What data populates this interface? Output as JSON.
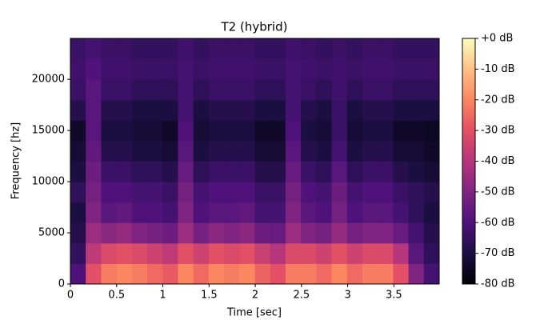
{
  "chart_data": {
    "type": "spectrogram",
    "title": "T2 (hybrid)",
    "x_label": "Time [sec]",
    "y_label": "Frequency [hz]",
    "xlim": [
      0,
      3.99
    ],
    "ylim": [
      0,
      24000
    ],
    "xticks": [
      0,
      0.5,
      1,
      1.5,
      2,
      2.5,
      3,
      3.5
    ],
    "yticks": [
      0,
      5000,
      10000,
      15000,
      20000
    ],
    "colormap": "magma",
    "clim": [
      -80,
      0
    ],
    "cticks": [
      {
        "value": 0,
        "label": "+0 dB"
      },
      {
        "value": -10,
        "label": "-10 dB"
      },
      {
        "value": -20,
        "label": "-20 dB"
      },
      {
        "value": -30,
        "label": "-30 dB"
      },
      {
        "value": -40,
        "label": "-40 dB"
      },
      {
        "value": -50,
        "label": "-50 dB"
      },
      {
        "value": -60,
        "label": "-60 dB"
      },
      {
        "value": -70,
        "label": "-70 dB"
      },
      {
        "value": -80,
        "label": "-80 dB"
      }
    ],
    "z": [
      [
        -60,
        -30,
        -22,
        -20,
        -22,
        -25,
        -28,
        -20,
        -25,
        -20,
        -22,
        -20,
        -26,
        -30,
        -22,
        -22,
        -25,
        -20,
        -25,
        -22,
        -22,
        -30,
        -50,
        -62
      ],
      [
        -65,
        -38,
        -32,
        -30,
        -32,
        -35,
        -38,
        -30,
        -35,
        -30,
        -32,
        -30,
        -36,
        -40,
        -32,
        -32,
        -35,
        -30,
        -35,
        -32,
        -32,
        -40,
        -58,
        -66
      ],
      [
        -68,
        -45,
        -48,
        -46,
        -50,
        -52,
        -54,
        -45,
        -52,
        -48,
        -50,
        -48,
        -54,
        -55,
        -45,
        -50,
        -52,
        -46,
        -52,
        -50,
        -50,
        -55,
        -62,
        -68
      ],
      [
        -70,
        -50,
        -58,
        -56,
        -60,
        -60,
        -62,
        -50,
        -60,
        -58,
        -58,
        -56,
        -62,
        -62,
        -50,
        -58,
        -60,
        -52,
        -60,
        -58,
        -58,
        -62,
        -66,
        -70
      ],
      [
        -66,
        -52,
        -60,
        -60,
        -62,
        -62,
        -64,
        -52,
        -62,
        -60,
        -60,
        -60,
        -64,
        -64,
        -52,
        -60,
        -62,
        -54,
        -62,
        -60,
        -60,
        -64,
        -66,
        -68
      ],
      [
        -70,
        -54,
        -64,
        -64,
        -66,
        -66,
        -68,
        -55,
        -66,
        -64,
        -64,
        -64,
        -68,
        -68,
        -55,
        -64,
        -66,
        -58,
        -66,
        -64,
        -64,
        -68,
        -70,
        -72
      ],
      [
        -72,
        -56,
        -68,
        -68,
        -70,
        -70,
        -72,
        -58,
        -70,
        -68,
        -68,
        -68,
        -72,
        -72,
        -58,
        -68,
        -70,
        -62,
        -70,
        -68,
        -68,
        -72,
        -72,
        -74
      ],
      [
        -74,
        -58,
        -70,
        -70,
        -72,
        -72,
        -74,
        -60,
        -72,
        -70,
        -70,
        -70,
        -74,
        -74,
        -60,
        -70,
        -72,
        -64,
        -72,
        -70,
        -70,
        -74,
        -74,
        -75
      ],
      [
        -68,
        -58,
        -68,
        -68,
        -70,
        -70,
        -70,
        -62,
        -70,
        -68,
        -68,
        -68,
        -70,
        -70,
        -62,
        -68,
        -70,
        -64,
        -70,
        -68,
        -68,
        -70,
        -70,
        -70
      ],
      [
        -64,
        -58,
        -64,
        -64,
        -66,
        -66,
        -66,
        -62,
        -66,
        -64,
        -64,
        -64,
        -66,
        -66,
        -62,
        -64,
        -66,
        -63,
        -66,
        -64,
        -64,
        -66,
        -66,
        -66
      ],
      [
        -63,
        -60,
        -63,
        -63,
        -64,
        -64,
        -64,
        -62,
        -64,
        -63,
        -63,
        -63,
        -64,
        -64,
        -62,
        -63,
        -64,
        -63,
        -64,
        -63,
        -63,
        -64,
        -64,
        -64
      ],
      [
        -64,
        -62,
        -64,
        -64,
        -65,
        -65,
        -65,
        -63,
        -65,
        -64,
        -64,
        -64,
        -65,
        -65,
        -63,
        -64,
        -65,
        -64,
        -65,
        -64,
        -64,
        -65,
        -65,
        -65
      ]
    ]
  }
}
